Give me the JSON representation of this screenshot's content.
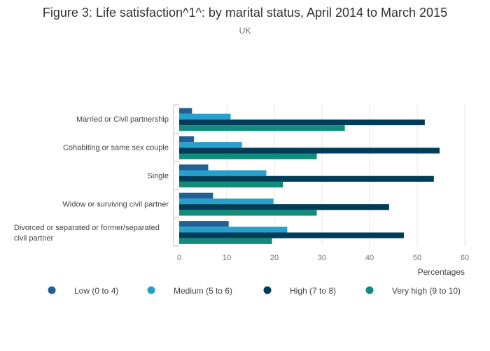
{
  "chart_data": {
    "type": "bar",
    "orientation": "horizontal",
    "title": "Figure 3: Life satisfaction^1^: by marital status, April 2014 to March 2015",
    "subtitle": "UK",
    "xlabel": "Percentages",
    "ylabel": "",
    "xlim": [
      0,
      60
    ],
    "xticks": [
      0,
      10,
      20,
      30,
      40,
      50,
      60
    ],
    "grid": true,
    "legend_position": "bottom",
    "categories": [
      [
        "Married or Civil partnership"
      ],
      [
        "Cohabiting or same sex couple"
      ],
      [
        "Single"
      ],
      [
        "Widow or surviving civil partner"
      ],
      [
        "Divorced or separated or former/separated",
        "civil partner"
      ]
    ],
    "series": [
      {
        "name": "Low (0 to 4)",
        "color": "#206095",
        "values": [
          2.7,
          3.1,
          6.1,
          7.1,
          10.4
        ]
      },
      {
        "name": "Medium (5 to 6)",
        "color": "#27a0cc",
        "values": [
          10.8,
          13.2,
          18.3,
          19.8,
          22.7
        ]
      },
      {
        "name": "High (7 to 8)",
        "color": "#003c57",
        "values": [
          51.6,
          54.7,
          53.5,
          44.1,
          47.2
        ]
      },
      {
        "name": "Very high (9 to 10)",
        "color": "#118c7b",
        "values": [
          34.8,
          28.9,
          21.8,
          28.9,
          19.5
        ]
      }
    ]
  }
}
